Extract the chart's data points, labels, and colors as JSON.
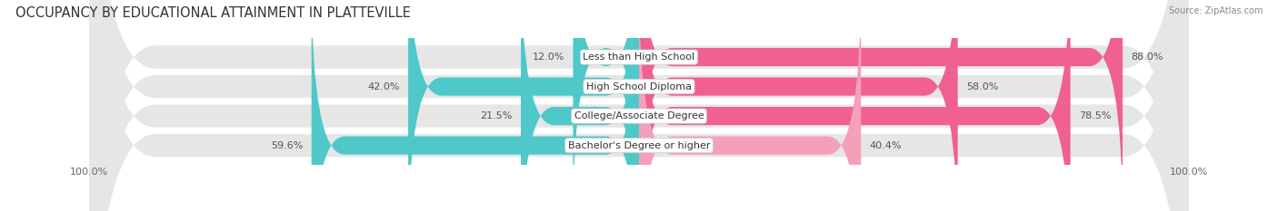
{
  "title": "OCCUPANCY BY EDUCATIONAL ATTAINMENT IN PLATTEVILLE",
  "source": "Source: ZipAtlas.com",
  "categories": [
    "Less than High School",
    "High School Diploma",
    "College/Associate Degree",
    "Bachelor's Degree or higher"
  ],
  "owner_pct": [
    12.0,
    42.0,
    21.5,
    59.6
  ],
  "renter_pct": [
    88.0,
    58.0,
    78.5,
    40.4
  ],
  "owner_color": "#4EC8C8",
  "renter_colors": [
    "#F06090",
    "#F06090",
    "#F06090",
    "#F4A0B8"
  ],
  "bg_row_colors": [
    "#e8e8e8",
    "#e8e8e8",
    "#e8e8e8",
    "#e8e8e8"
  ],
  "bar_height": 0.62,
  "title_fontsize": 10.5,
  "label_fontsize": 8,
  "pct_fontsize": 8,
  "axis_label_fontsize": 8,
  "legend_fontsize": 8.5,
  "xlim": [
    -100,
    100
  ]
}
